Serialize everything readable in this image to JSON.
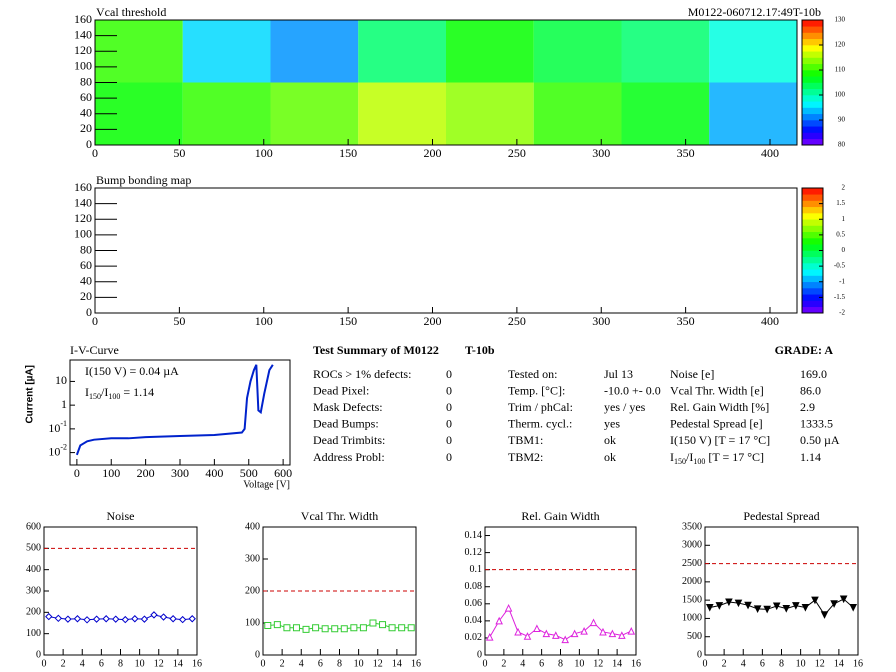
{
  "chart_data": [
    {
      "type": "heatmap",
      "title": "Vcal threshold",
      "subtitle": "M0122-060712.17:49T-10b",
      "xlim": [
        0,
        416
      ],
      "ylim": [
        0,
        160
      ],
      "xticks": [
        0,
        50,
        100,
        150,
        200,
        250,
        300,
        350,
        400
      ],
      "yticks": [
        0,
        20,
        40,
        60,
        80,
        100,
        120,
        140,
        160
      ],
      "x_edges": [
        0,
        52,
        104,
        156,
        208,
        260,
        312,
        364,
        416
      ],
      "y_edges": [
        0,
        80,
        160
      ],
      "values": [
        [
          108,
          110,
          112,
          116,
          114,
          110,
          107,
          93
        ],
        [
          110,
          95,
          92,
          103,
          108,
          105,
          103,
          98
        ]
      ],
      "zlim": [
        80,
        130
      ],
      "zticks": [
        80,
        90,
        100,
        110,
        120,
        130
      ]
    },
    {
      "type": "heatmap",
      "title": "Bump bonding map",
      "xlim": [
        0,
        416
      ],
      "ylim": [
        0,
        160
      ],
      "xticks": [
        0,
        50,
        100,
        150,
        200,
        250,
        300,
        350,
        400
      ],
      "yticks": [
        0,
        20,
        40,
        60,
        80,
        100,
        120,
        140,
        160
      ],
      "zlim": [
        -2,
        2
      ],
      "zticks": [
        -2,
        -1.5,
        -1,
        -0.5,
        0,
        0.5,
        1,
        1.5,
        2
      ]
    },
    {
      "type": "line",
      "title": "I-V-Curve",
      "x_label": "Voltage [V]",
      "y_label": "Current [µA]",
      "color": "#0022cc",
      "log_y": true,
      "x": [
        0,
        10,
        30,
        50,
        100,
        150,
        200,
        300,
        400,
        480,
        488,
        495,
        505,
        515,
        522,
        528,
        535,
        545,
        560,
        570
      ],
      "values": [
        0.008,
        0.02,
        0.03,
        0.035,
        0.04,
        0.04,
        0.045,
        0.05,
        0.055,
        0.07,
        0.1,
        2,
        10,
        30,
        50,
        0.6,
        0.5,
        3,
        30,
        50
      ],
      "xlim": [
        -20,
        620
      ],
      "ylim": [
        0.003,
        80
      ],
      "xticks": [
        0,
        100,
        200,
        300,
        400,
        500,
        600
      ],
      "yticks": [
        {
          "value": 0.01,
          "label": "10",
          "exponent": "-2"
        },
        {
          "value": 0.1,
          "label": "10",
          "exponent": "-1"
        },
        1,
        10
      ],
      "annotations": [
        "I(150 V) = 0.04 µA",
        [
          "I",
          "150",
          "/I",
          "100",
          " =  1.14"
        ]
      ]
    },
    {
      "type": "scatter",
      "title": "Noise",
      "color": "#0000cc",
      "marker": "diamond",
      "threshold": 500,
      "x": [
        0.5,
        1.5,
        2.5,
        3.5,
        4.5,
        5.5,
        6.5,
        7.5,
        8.5,
        9.5,
        10.5,
        11.5,
        12.5,
        13.5,
        14.5,
        15.5
      ],
      "values": [
        180,
        172,
        168,
        170,
        165,
        168,
        170,
        168,
        166,
        170,
        168,
        188,
        178,
        170,
        166,
        170
      ],
      "xlim": [
        0,
        16
      ],
      "ylim": [
        0,
        600
      ],
      "xticks": [
        0,
        2,
        4,
        6,
        8,
        10,
        12,
        14,
        16
      ],
      "yticks": [
        0,
        100,
        200,
        300,
        400,
        500,
        600
      ]
    },
    {
      "type": "scatter",
      "title": "Vcal Thr. Width",
      "color": "#33cc33",
      "marker": "square",
      "threshold": 200,
      "x": [
        0.5,
        1.5,
        2.5,
        3.5,
        4.5,
        5.5,
        6.5,
        7.5,
        8.5,
        9.5,
        10.5,
        11.5,
        12.5,
        13.5,
        14.5,
        15.5
      ],
      "values": [
        92,
        95,
        85,
        85,
        80,
        85,
        82,
        82,
        82,
        85,
        85,
        100,
        95,
        85,
        85,
        85
      ],
      "xlim": [
        0,
        16
      ],
      "ylim": [
        0,
        400
      ],
      "xticks": [
        0,
        2,
        4,
        6,
        8,
        10,
        12,
        14,
        16
      ],
      "yticks": [
        0,
        100,
        200,
        300,
        400
      ]
    },
    {
      "type": "scatter",
      "title": "Rel. Gain Width",
      "color": "#dd22dd",
      "marker": "triangle",
      "threshold": 0.1,
      "x": [
        0.5,
        1.5,
        2.5,
        3.5,
        4.5,
        5.5,
        6.5,
        7.5,
        8.5,
        9.5,
        10.5,
        11.5,
        12.5,
        13.5,
        14.5,
        15.5
      ],
      "values": [
        0.021,
        0.04,
        0.055,
        0.027,
        0.022,
        0.031,
        0.025,
        0.023,
        0.018,
        0.025,
        0.028,
        0.038,
        0.027,
        0.025,
        0.023,
        0.028
      ],
      "xlim": [
        0,
        16
      ],
      "ylim": [
        0,
        0.15
      ],
      "xticks": [
        0,
        2,
        4,
        6,
        8,
        10,
        12,
        14,
        16
      ],
      "yticks": [
        0,
        0.02,
        0.04,
        0.06,
        0.08,
        0.1,
        0.12,
        0.14
      ]
    },
    {
      "type": "scatter",
      "title": "Pedestal Spread",
      "color": "#000000",
      "marker": "triangle-down",
      "threshold": 2500,
      "x": [
        0.5,
        1.5,
        2.5,
        3.5,
        4.5,
        5.5,
        6.5,
        7.5,
        8.5,
        9.5,
        10.5,
        11.5,
        12.5,
        13.5,
        14.5,
        15.5
      ],
      "values": [
        1300,
        1350,
        1450,
        1420,
        1360,
        1260,
        1250,
        1340,
        1270,
        1350,
        1300,
        1500,
        1100,
        1400,
        1530,
        1300
      ],
      "xlim": [
        0,
        16
      ],
      "ylim": [
        0,
        3500
      ],
      "xticks": [
        0,
        2,
        4,
        6,
        8,
        10,
        12,
        14,
        16
      ],
      "yticks": [
        0,
        500,
        1000,
        1500,
        2000,
        2500,
        3000,
        3500
      ]
    }
  ],
  "summary": {
    "title": "Test Summary of M0122",
    "test": "T-10b",
    "grade": "GRADE:  A",
    "defects": [
      [
        "ROCs > 1% defects:",
        "0"
      ],
      [
        "Dead Pixel:",
        "0"
      ],
      [
        "Mask Defects:",
        "0"
      ],
      [
        "Dead Bumps:",
        "0"
      ],
      [
        "Dead Trimbits:",
        "0"
      ],
      [
        "Address Probl:",
        "0"
      ]
    ],
    "conditions": [
      [
        "Tested on:",
        "Jul 13"
      ],
      [
        "Temp. [°C]:",
        "-10.0 +- 0.0"
      ],
      [
        "Trim / phCal:",
        "yes / yes"
      ],
      [
        "Therm. cycl.:",
        "yes"
      ],
      [
        "TBM1:",
        "ok"
      ],
      [
        "TBM2:",
        "ok"
      ]
    ],
    "results": [
      [
        "Noise [e]",
        "169.0"
      ],
      [
        "Vcal Thr. Width [e]",
        "86.0"
      ],
      [
        "Rel. Gain Width [%]",
        "2.9"
      ],
      [
        "Pedestal Spread [e]",
        "1333.5"
      ],
      [
        "I(150 V) [T = 17 °C]",
        "0.50 µA"
      ],
      [
        [
          "I",
          "150",
          "/I",
          "100",
          "  [T = 17 °C]"
        ],
        "1.14"
      ]
    ]
  }
}
